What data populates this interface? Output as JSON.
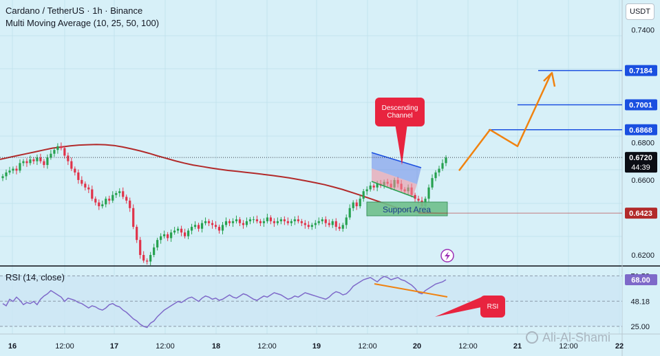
{
  "header": {
    "title": "Cardano / TetherUS · 1h · Binance",
    "indicator": "Multi Moving Average (10, 25, 50, 100)",
    "currency_button": "USDT"
  },
  "price_axis": {
    "ticks": [
      "0.7400",
      "0.6800",
      "0.6600",
      "0.6200"
    ],
    "tick_values": [
      0.74,
      0.68,
      0.66,
      0.62
    ],
    "ylim": [
      0.6145,
      0.756
    ]
  },
  "price_labels": [
    {
      "value": 0.7184,
      "text": "0.7184",
      "color": "#1a4fe0"
    },
    {
      "value": 0.7001,
      "text": "0.7001",
      "color": "#1a4fe0"
    },
    {
      "value": 0.6868,
      "text": "0.6868",
      "color": "#1a4fe0"
    },
    {
      "value": 0.672,
      "text": "0.6720",
      "color": "#0b0d14",
      "subtext": "44:39"
    },
    {
      "value": 0.6423,
      "text": "0.6423",
      "color": "#b22a2a"
    }
  ],
  "time_axis": {
    "ticks": [
      "16",
      "12:00",
      "17",
      "12:00",
      "18",
      "12:00",
      "19",
      "12:00",
      "20",
      "12:00",
      "21",
      "12:00",
      "22"
    ],
    "bold": [
      "16",
      "17",
      "18",
      "19",
      "20",
      "21",
      "22"
    ]
  },
  "annotations": {
    "descending_channel": "Descending\nChannel",
    "support_area": "Support Area",
    "rsi_callout": "RSI"
  },
  "rsi": {
    "title": "RSI (14, close)",
    "ticks": [
      "71.53",
      "48.18",
      "25.00"
    ],
    "tick_values": [
      71.53,
      48.18,
      25.0
    ],
    "current": "68.00",
    "ylim": [
      18,
      80
    ]
  },
  "watermark": "Ali-Al-Shami",
  "colors": {
    "bull": "#26a14f",
    "bear": "#e0334a",
    "ma": "#b22a2a",
    "target_line": "#1a4fe0",
    "projection": "#f0820f",
    "rsi_line": "#7e69c9",
    "background": "#d7f0f8"
  },
  "chart_data": {
    "type": "candlestick",
    "title": "Cardano / TetherUS · 1h · Binance",
    "ylim": [
      0.6145,
      0.756
    ],
    "close_series": [
      0.662,
      0.664,
      0.665,
      0.666,
      0.665,
      0.669,
      0.67,
      0.669,
      0.671,
      0.67,
      0.672,
      0.67,
      0.668,
      0.672,
      0.674,
      0.676,
      0.678,
      0.677,
      0.673,
      0.67,
      0.666,
      0.664,
      0.66,
      0.658,
      0.656,
      0.655,
      0.65,
      0.648,
      0.646,
      0.647,
      0.65,
      0.649,
      0.652,
      0.653,
      0.654,
      0.651,
      0.649,
      0.645,
      0.635,
      0.628,
      0.62,
      0.617,
      0.6165,
      0.62,
      0.624,
      0.628,
      0.63,
      0.631,
      0.629,
      0.632,
      0.633,
      0.634,
      0.632,
      0.63,
      0.633,
      0.635,
      0.636,
      0.634,
      0.637,
      0.638,
      0.637,
      0.636,
      0.635,
      0.633,
      0.636,
      0.638,
      0.637,
      0.638,
      0.639,
      0.637,
      0.636,
      0.638,
      0.639,
      0.639,
      0.638,
      0.637,
      0.638,
      0.64,
      0.638,
      0.637,
      0.638,
      0.639,
      0.638,
      0.637,
      0.638,
      0.639,
      0.638,
      0.637,
      0.636,
      0.635,
      0.636,
      0.637,
      0.638,
      0.639,
      0.637,
      0.636,
      0.638,
      0.635,
      0.634,
      0.636,
      0.64,
      0.645,
      0.648,
      0.646,
      0.65,
      0.654,
      0.655,
      0.657,
      0.656,
      0.658,
      0.657,
      0.659,
      0.658,
      0.656,
      0.66,
      0.658,
      0.655,
      0.654,
      0.656,
      0.652,
      0.65,
      0.649,
      0.646,
      0.65,
      0.656,
      0.661,
      0.664,
      0.666,
      0.669,
      0.672
    ],
    "moving_average": [
      0.671,
      0.672,
      0.673,
      0.674,
      0.675,
      0.676,
      0.677,
      0.6776,
      0.6782,
      0.6786,
      0.6788,
      0.6789,
      0.6788,
      0.6784,
      0.6776,
      0.6766,
      0.6755,
      0.6742,
      0.6728,
      0.6715,
      0.6702,
      0.669,
      0.668,
      0.6672,
      0.6664,
      0.6657,
      0.6651,
      0.6646,
      0.6641,
      0.6636,
      0.663,
      0.6624,
      0.6618,
      0.6611,
      0.6603,
      0.6594,
      0.6585,
      0.6575,
      0.6563,
      0.655,
      0.6535,
      0.652,
      0.6504,
      0.6488,
      0.6472,
      0.6456,
      0.6442,
      0.6432,
      0.6428,
      0.6425,
      0.6423,
      0.6423
    ],
    "targets": [
      0.7184,
      0.7001,
      0.6868
    ],
    "current_price": 0.672,
    "support_level": 0.6423,
    "projection": [
      0.665,
      0.6868,
      0.678,
      0.7184
    ],
    "rsi_series": [
      46,
      44,
      50,
      48,
      52,
      49,
      45,
      47,
      46,
      48,
      45,
      50,
      53,
      55,
      58,
      56,
      54,
      52,
      48,
      51,
      50,
      49,
      47,
      46,
      44,
      42,
      44,
      43,
      41,
      40,
      42,
      45,
      46,
      44,
      43,
      40,
      38,
      35,
      32,
      30,
      27,
      25,
      24,
      28,
      30,
      34,
      37,
      40,
      42,
      44,
      46,
      48,
      47,
      49,
      51,
      52,
      50,
      48,
      51,
      53,
      52,
      50,
      51,
      49,
      50,
      52,
      54,
      52,
      51,
      53,
      55,
      54,
      52,
      50,
      49,
      51,
      53,
      52,
      54,
      56,
      55,
      54,
      52,
      50,
      51,
      53,
      52,
      54,
      56,
      55,
      54,
      53,
      52,
      51,
      50,
      52,
      55,
      57,
      56,
      54,
      55,
      58,
      62,
      64,
      66,
      68,
      69,
      70,
      68,
      66,
      69,
      71,
      70,
      68,
      69,
      70,
      68,
      67,
      65,
      63,
      60,
      56,
      55,
      58,
      60,
      62,
      64,
      65,
      66,
      68
    ],
    "rsi_levels": [
      71.53,
      48.18,
      25.0
    ]
  }
}
